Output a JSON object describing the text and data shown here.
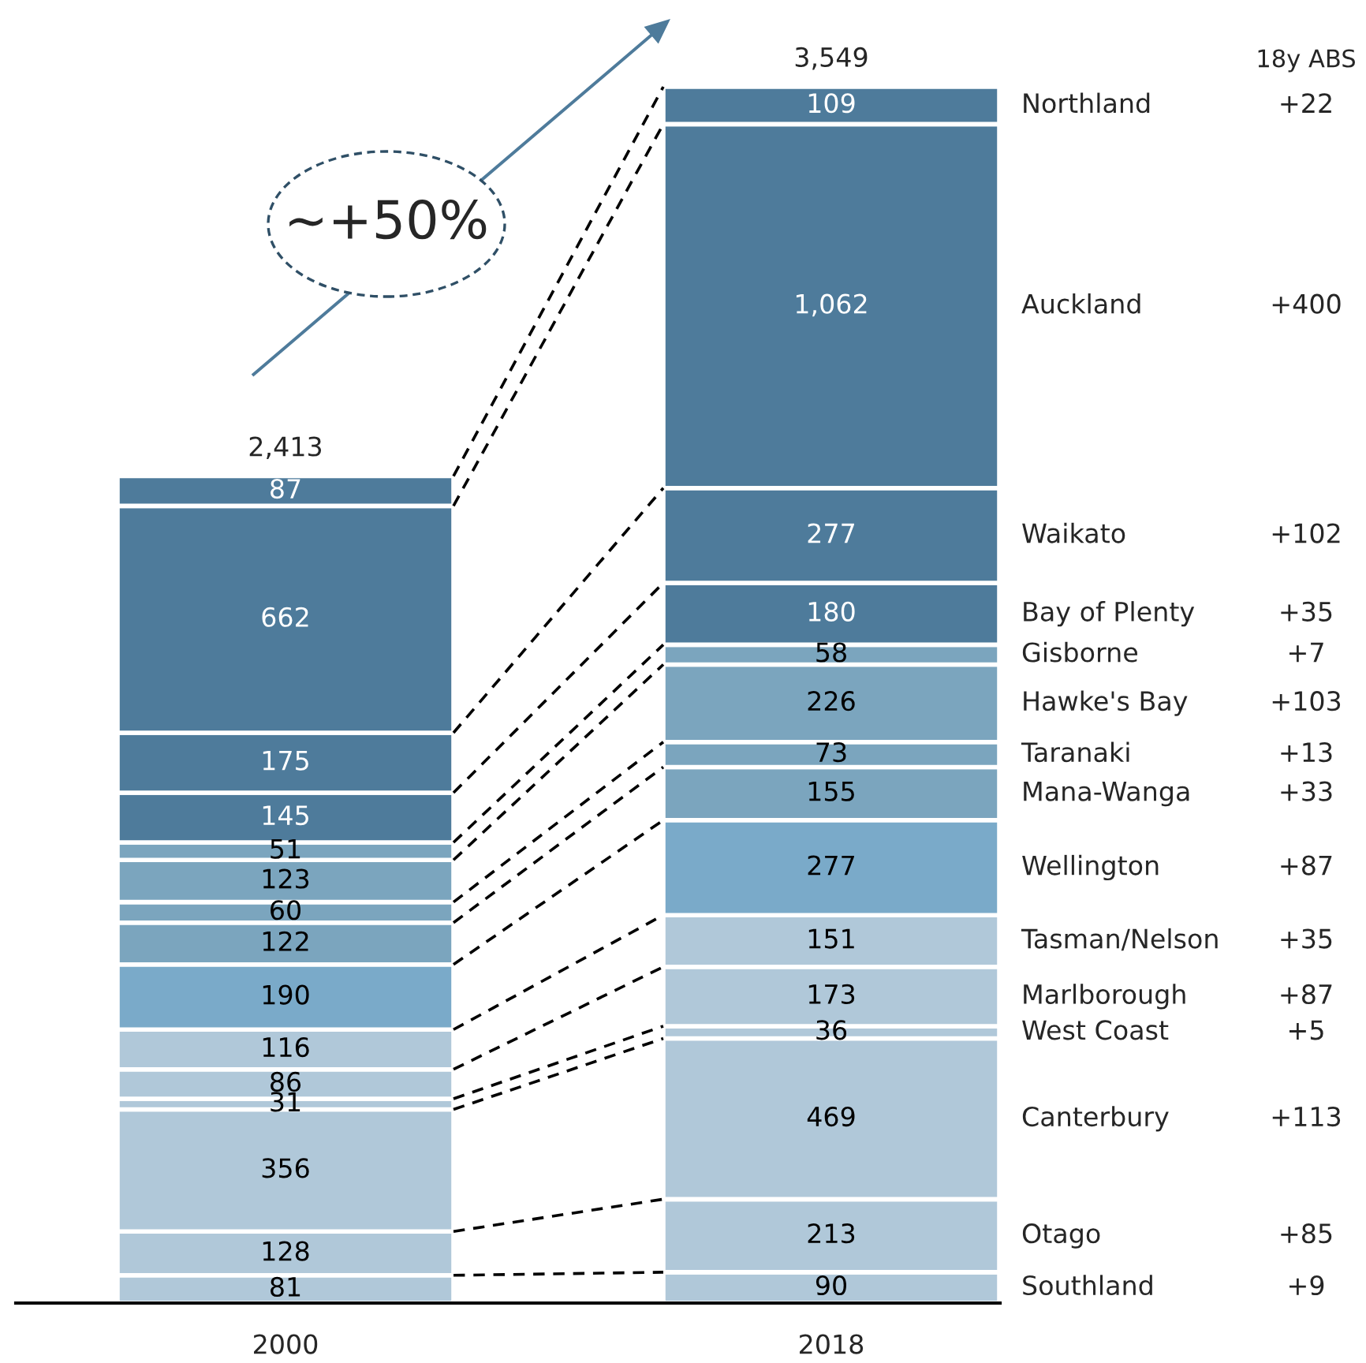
{
  "chart_data": {
    "type": "bar",
    "stacked": true,
    "categories": [
      "2000",
      "2018"
    ],
    "series": [
      {
        "name": "Southland",
        "color": "#b0c8d9",
        "values": [
          81,
          90
        ]
      },
      {
        "name": "Otago",
        "color": "#b0c8d9",
        "values": [
          128,
          213
        ]
      },
      {
        "name": "Canterbury",
        "color": "#b0c8d9",
        "values": [
          356,
          469
        ]
      },
      {
        "name": "West Coast",
        "color": "#b0c8d9",
        "values": [
          31,
          36
        ]
      },
      {
        "name": "Marlborough",
        "color": "#b0c8d9",
        "values": [
          86,
          173
        ]
      },
      {
        "name": "Tasman/Nelson",
        "color": "#b0c8d9",
        "values": [
          116,
          151
        ]
      },
      {
        "name": "Wellington",
        "color": "#7aaac9",
        "values": [
          190,
          277
        ]
      },
      {
        "name": "Mana-Wanga",
        "color": "#7ba5be",
        "values": [
          122,
          155
        ]
      },
      {
        "name": "Taranaki",
        "color": "#7ba5be",
        "values": [
          60,
          73
        ]
      },
      {
        "name": "Hawke's Bay",
        "color": "#7ba5be",
        "values": [
          123,
          226
        ]
      },
      {
        "name": "Gisborne",
        "color": "#7ba5be",
        "values": [
          51,
          58
        ]
      },
      {
        "name": "Bay of Plenty",
        "color": "#4e7b9b",
        "values": [
          145,
          180
        ]
      },
      {
        "name": "Waikato",
        "color": "#4e7b9b",
        "values": [
          175,
          277
        ]
      },
      {
        "name": "Auckland",
        "color": "#4e7b9b",
        "values": [
          662,
          1062
        ],
        "value_labels": [
          "662",
          "1,062"
        ]
      },
      {
        "name": "Northland",
        "color": "#4e7b9b",
        "values": [
          87,
          109
        ]
      }
    ],
    "data_labels": true,
    "totals": [
      "2,413",
      "3,549"
    ],
    "annotations": [
      "~+50%",
      "18y ABS",
      "+9",
      "+85",
      "+113",
      "+5",
      "+87",
      "+35",
      "+87",
      "+33",
      "+13",
      "+103",
      "+7",
      "+35",
      "+102",
      "+400",
      "+22"
    ],
    "legend": false,
    "grid": false
  }
}
